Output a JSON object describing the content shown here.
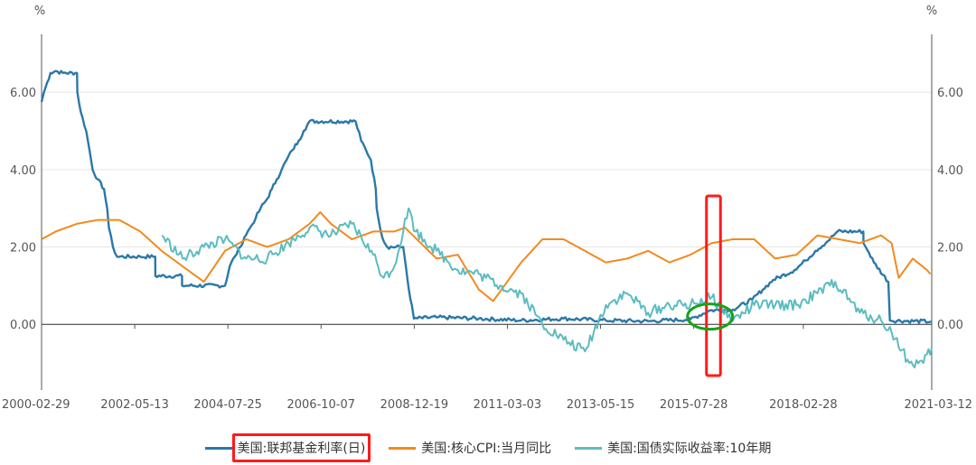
{
  "chart_data": {
    "type": "line",
    "y_unit_left": "%",
    "y_unit_right": "%",
    "ylim": [
      -1.7,
      7.5
    ],
    "yticks": [
      0,
      2,
      4,
      6
    ],
    "ytick_labels": [
      "0.00",
      "2.00",
      "4.00",
      "6.00"
    ],
    "xlim": [
      "2000-02-29",
      "2021-03-12"
    ],
    "xticks": [
      "2000-02-29",
      "2002-05-13",
      "2004-07-25",
      "2006-10-07",
      "2008-12-19",
      "2011-03-03",
      "2013-05-15",
      "2015-07-28",
      "2018-02-28",
      "2021-03-12"
    ],
    "grid": true,
    "legend_position": "bottom",
    "series": [
      {
        "name": "美国:联邦基金利率(日)",
        "color": "#2b78a8",
        "points": [
          [
            "2000-02-29",
            5.75
          ],
          [
            "2000-03-20",
            6.0
          ],
          [
            "2000-05-16",
            6.5
          ],
          [
            "2000-06-30",
            6.55
          ],
          [
            "2000-09-01",
            6.5
          ],
          [
            "2000-12-31",
            6.5
          ],
          [
            "2001-01-03",
            6.0
          ],
          [
            "2001-02-01",
            5.5
          ],
          [
            "2001-03-20",
            5.0
          ],
          [
            "2001-04-18",
            4.5
          ],
          [
            "2001-05-15",
            4.0
          ],
          [
            "2001-06-27",
            3.75
          ],
          [
            "2001-08-21",
            3.5
          ],
          [
            "2001-09-17",
            3.0
          ],
          [
            "2001-10-02",
            2.5
          ],
          [
            "2001-11-06",
            2.0
          ],
          [
            "2001-12-11",
            1.75
          ],
          [
            "2002-06-30",
            1.75
          ],
          [
            "2002-11-06",
            1.75
          ],
          [
            "2002-11-07",
            1.25
          ],
          [
            "2003-06-25",
            1.25
          ],
          [
            "2003-06-26",
            1.0
          ],
          [
            "2004-06-30",
            1.0
          ],
          [
            "2004-08-10",
            1.5
          ],
          [
            "2004-09-21",
            1.75
          ],
          [
            "2004-11-10",
            2.0
          ],
          [
            "2004-12-14",
            2.25
          ],
          [
            "2005-02-02",
            2.5
          ],
          [
            "2005-03-22",
            2.75
          ],
          [
            "2005-05-03",
            3.0
          ],
          [
            "2005-06-30",
            3.25
          ],
          [
            "2005-08-09",
            3.5
          ],
          [
            "2005-09-20",
            3.75
          ],
          [
            "2005-11-01",
            4.0
          ],
          [
            "2005-12-13",
            4.25
          ],
          [
            "2006-01-31",
            4.5
          ],
          [
            "2006-03-28",
            4.75
          ],
          [
            "2006-05-10",
            5.0
          ],
          [
            "2006-06-29",
            5.25
          ],
          [
            "2007-08-01",
            5.25
          ],
          [
            "2007-09-18",
            4.75
          ],
          [
            "2007-10-31",
            4.5
          ],
          [
            "2007-12-11",
            4.25
          ],
          [
            "2008-01-22",
            3.5
          ],
          [
            "2008-01-30",
            3.0
          ],
          [
            "2008-03-18",
            2.25
          ],
          [
            "2008-04-30",
            2.0
          ],
          [
            "2008-09-15",
            2.0
          ],
          [
            "2008-10-08",
            1.5
          ],
          [
            "2008-10-29",
            1.0
          ],
          [
            "2008-12-16",
            0.15
          ],
          [
            "2009-06-30",
            0.18
          ],
          [
            "2010-06-30",
            0.15
          ],
          [
            "2011-06-30",
            0.1
          ],
          [
            "2012-06-30",
            0.15
          ],
          [
            "2013-06-30",
            0.1
          ],
          [
            "2014-06-30",
            0.08
          ],
          [
            "2015-06-30",
            0.13
          ],
          [
            "2015-12-16",
            0.36
          ],
          [
            "2016-06-30",
            0.38
          ],
          [
            "2016-12-14",
            0.64
          ],
          [
            "2017-03-15",
            0.9
          ],
          [
            "2017-06-14",
            1.15
          ],
          [
            "2017-12-13",
            1.4
          ],
          [
            "2018-03-21",
            1.65
          ],
          [
            "2018-06-13",
            1.9
          ],
          [
            "2018-09-26",
            2.15
          ],
          [
            "2018-12-19",
            2.4
          ],
          [
            "2019-07-31",
            2.4
          ],
          [
            "2019-08-01",
            2.1
          ],
          [
            "2019-09-18",
            1.85
          ],
          [
            "2019-10-30",
            1.6
          ],
          [
            "2020-03-03",
            1.1
          ],
          [
            "2020-03-16",
            0.1
          ],
          [
            "2021-03-12",
            0.07
          ]
        ]
      },
      {
        "name": "美国:核心CPI:当月同比",
        "color": "#f28a1e",
        "points": [
          [
            "2000-02-29",
            2.2
          ],
          [
            "2000-06-30",
            2.4
          ],
          [
            "2000-12-31",
            2.6
          ],
          [
            "2001-06-30",
            2.7
          ],
          [
            "2001-12-31",
            2.7
          ],
          [
            "2002-06-30",
            2.4
          ],
          [
            "2002-12-31",
            1.9
          ],
          [
            "2003-06-30",
            1.5
          ],
          [
            "2003-12-31",
            1.1
          ],
          [
            "2004-06-30",
            1.9
          ],
          [
            "2004-12-31",
            2.2
          ],
          [
            "2005-06-30",
            2.0
          ],
          [
            "2005-12-31",
            2.2
          ],
          [
            "2006-06-30",
            2.6
          ],
          [
            "2006-09-30",
            2.9
          ],
          [
            "2006-12-31",
            2.6
          ],
          [
            "2007-06-30",
            2.2
          ],
          [
            "2007-12-31",
            2.4
          ],
          [
            "2008-06-30",
            2.4
          ],
          [
            "2008-09-30",
            2.5
          ],
          [
            "2009-06-30",
            1.7
          ],
          [
            "2009-12-31",
            1.8
          ],
          [
            "2010-06-30",
            0.9
          ],
          [
            "2010-10-31",
            0.6
          ],
          [
            "2011-06-30",
            1.6
          ],
          [
            "2011-12-31",
            2.2
          ],
          [
            "2012-06-30",
            2.2
          ],
          [
            "2012-12-31",
            1.9
          ],
          [
            "2013-06-30",
            1.6
          ],
          [
            "2013-12-31",
            1.7
          ],
          [
            "2014-06-30",
            1.9
          ],
          [
            "2014-12-31",
            1.6
          ],
          [
            "2015-06-30",
            1.8
          ],
          [
            "2015-12-31",
            2.1
          ],
          [
            "2016-06-30",
            2.2
          ],
          [
            "2016-12-31",
            2.2
          ],
          [
            "2017-06-30",
            1.7
          ],
          [
            "2017-12-31",
            1.8
          ],
          [
            "2018-06-30",
            2.3
          ],
          [
            "2018-12-31",
            2.2
          ],
          [
            "2019-06-30",
            2.1
          ],
          [
            "2019-12-31",
            2.3
          ],
          [
            "2020-03-31",
            2.1
          ],
          [
            "2020-05-31",
            1.2
          ],
          [
            "2020-09-30",
            1.7
          ],
          [
            "2021-01-31",
            1.4
          ],
          [
            "2021-02-28",
            1.3
          ]
        ]
      },
      {
        "name": "美国:国债实际收益率:10年期",
        "color": "#5cbcc0",
        "points": [
          [
            "2003-01-02",
            2.3
          ],
          [
            "2003-06-30",
            1.7
          ],
          [
            "2003-12-31",
            2.0
          ],
          [
            "2004-06-30",
            2.2
          ],
          [
            "2004-12-31",
            1.7
          ],
          [
            "2005-06-30",
            1.7
          ],
          [
            "2005-12-31",
            2.1
          ],
          [
            "2006-06-30",
            2.5
          ],
          [
            "2006-12-31",
            2.3
          ],
          [
            "2007-06-30",
            2.6
          ],
          [
            "2007-12-31",
            1.8
          ],
          [
            "2008-03-31",
            1.2
          ],
          [
            "2008-06-30",
            1.5
          ],
          [
            "2008-10-31",
            3.0
          ],
          [
            "2008-12-31",
            2.4
          ],
          [
            "2009-06-30",
            1.9
          ],
          [
            "2009-12-31",
            1.4
          ],
          [
            "2010-06-30",
            1.3
          ],
          [
            "2010-12-31",
            1.0
          ],
          [
            "2011-06-30",
            0.8
          ],
          [
            "2011-12-31",
            0.0
          ],
          [
            "2012-06-30",
            -0.4
          ],
          [
            "2012-12-31",
            -0.7
          ],
          [
            "2013-06-30",
            0.5
          ],
          [
            "2013-12-31",
            0.8
          ],
          [
            "2014-06-30",
            0.3
          ],
          [
            "2014-12-31",
            0.5
          ],
          [
            "2015-06-30",
            0.5
          ],
          [
            "2015-12-31",
            0.7
          ],
          [
            "2016-06-30",
            0.1
          ],
          [
            "2016-12-31",
            0.5
          ],
          [
            "2017-06-30",
            0.5
          ],
          [
            "2017-12-31",
            0.5
          ],
          [
            "2018-06-30",
            0.8
          ],
          [
            "2018-11-30",
            1.1
          ],
          [
            "2019-06-30",
            0.3
          ],
          [
            "2019-12-31",
            0.1
          ],
          [
            "2020-03-31",
            -0.2
          ],
          [
            "2020-08-31",
            -1.0
          ],
          [
            "2020-12-31",
            -1.0
          ],
          [
            "2021-03-12",
            -0.6
          ]
        ]
      }
    ],
    "annotations": [
      {
        "type": "rect",
        "color": "#ff1a1a",
        "from": "2015-11-15",
        "to": "2016-03-15"
      },
      {
        "type": "ellipse",
        "color": "#1aa11a",
        "date": "2015-12-16",
        "value": 0.2
      },
      {
        "type": "legend-box",
        "color": "#ff1a1a",
        "target": "美国:联邦基金利率(日)"
      }
    ]
  }
}
